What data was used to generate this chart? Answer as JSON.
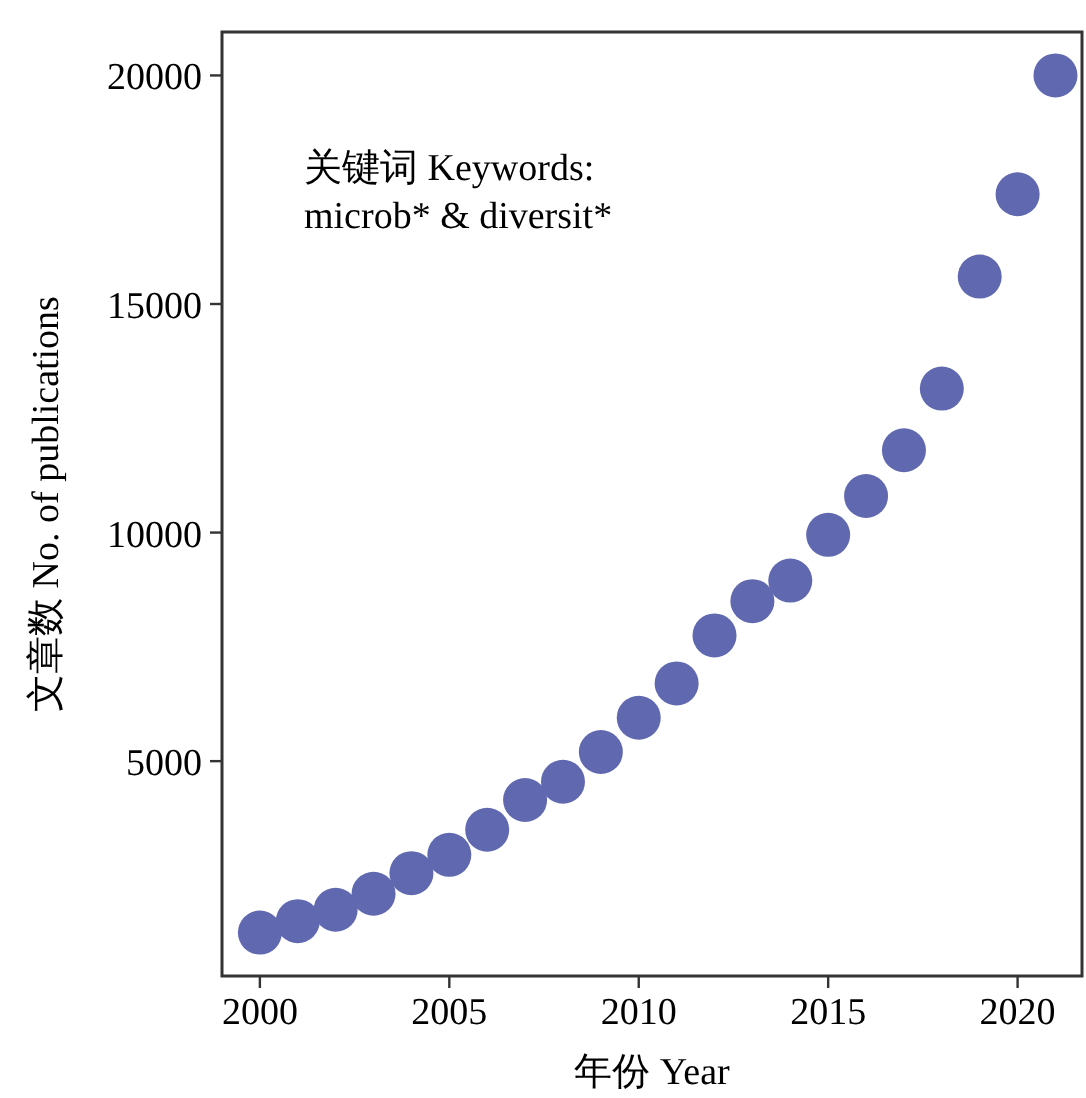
{
  "chart_data": {
    "type": "scatter",
    "xlabel": "年份 Year",
    "ylabel": "文章数 No. of publications",
    "annotations": [
      "关键词 Keywords:",
      "microb* & diversit*"
    ],
    "x": [
      2000,
      2001,
      2002,
      2003,
      2004,
      2005,
      2006,
      2007,
      2008,
      2009,
      2010,
      2011,
      2012,
      2013,
      2014,
      2015,
      2016,
      2017,
      2018,
      2019,
      2020,
      2021
    ],
    "series": [
      {
        "color": "#6068b0",
        "values": [
          1250,
          1500,
          1750,
          2100,
          2550,
          2950,
          3500,
          4150,
          4550,
          5200,
          5950,
          6700,
          7750,
          8500,
          8950,
          9950,
          10800,
          11800,
          13150,
          15600,
          17400,
          20000
        ]
      }
    ],
    "marker": "circle",
    "xlim": [
      1999,
      2021.7
    ],
    "ylim": [
      300,
      20950
    ],
    "xticks": [
      2000,
      2005,
      2010,
      2015,
      2020
    ],
    "yticks": [
      5000,
      10000,
      15000,
      20000
    ]
  }
}
